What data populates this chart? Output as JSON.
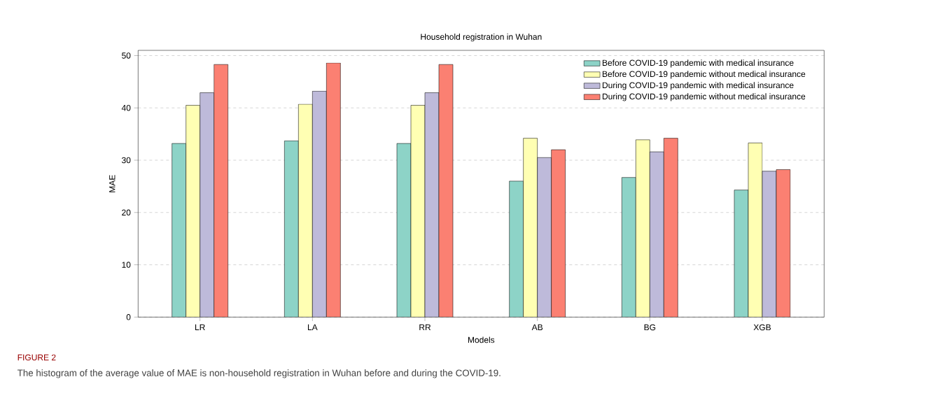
{
  "chart_data": {
    "type": "bar",
    "title": "Household registration in Wuhan",
    "xlabel": "Models",
    "ylabel": "MAE",
    "categories": [
      "LR",
      "LA",
      "RR",
      "AB",
      "BG",
      "XGB"
    ],
    "series": [
      {
        "name": "Before COVID-19 pandemic with medical insurance",
        "color": "#8dd3c7",
        "values": [
          33.2,
          33.7,
          33.2,
          26.0,
          26.7,
          24.3
        ]
      },
      {
        "name": "Before COVID-19 pandemic without medical insurance",
        "color": "#ffffb3",
        "values": [
          40.5,
          40.7,
          40.5,
          34.2,
          33.9,
          33.3
        ]
      },
      {
        "name": "During COVID-19 pandemic with medical insurance",
        "color": "#bebada",
        "values": [
          42.9,
          43.2,
          42.9,
          30.5,
          31.6,
          27.9
        ]
      },
      {
        "name": "During COVID-19 pandemic without medical insurance",
        "color": "#fb8072",
        "values": [
          48.3,
          48.6,
          48.3,
          32.0,
          34.2,
          28.2
        ]
      }
    ],
    "ylim": [
      0,
      51
    ],
    "yticks": [
      0,
      10,
      20,
      30,
      40,
      50
    ],
    "grid": "y",
    "legend": "top right",
    "annotations": [
      "FIGURE 2",
      "The histogram of the average value of MAE is non-household registration in Wuhan before and during the COVID-19."
    ]
  }
}
